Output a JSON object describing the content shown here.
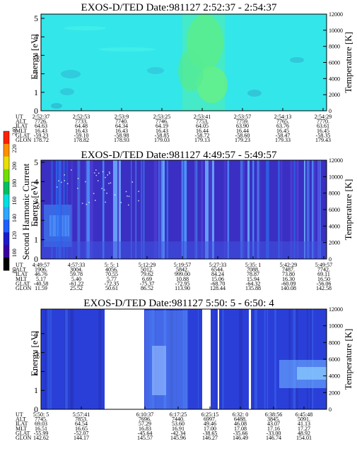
{
  "colorbar": {
    "label": "Second Harmonic Current",
    "ticks": [
      "80",
      "100",
      "120",
      "140",
      "160",
      "180",
      "200",
      "220",
      "240"
    ],
    "colors": [
      "#000000",
      "#3a00a0",
      "#1a1acc",
      "#1f5fff",
      "#2fa8ff",
      "#00e0e0",
      "#00c060",
      "#70e000",
      "#e8e000",
      "#ff9000",
      "#ff2000"
    ]
  },
  "row_labels": [
    "UT",
    "ALT",
    "ILAT",
    "MLT",
    "GLAT",
    "GLON"
  ],
  "panels": [
    {
      "title": "EXOS-D/TED   Date:981127  2:52:37 - 2:54:37",
      "ylabel": "Energy [eV]",
      "y2label": "Temperature [K]",
      "yticks": [
        "0",
        "1",
        "2",
        "3",
        "4",
        "5"
      ],
      "y2ticks": [
        "0",
        "2000",
        "4000",
        "6000",
        "8000",
        "10000",
        "12000"
      ],
      "bg": "#33e6ea",
      "columns": [
        [
          "2:52:37",
          "7726.",
          "64.63",
          "16.43",
          "-59.23",
          "178.72"
        ],
        [
          "2:52:53",
          "7733.",
          "64.48",
          "16.43",
          "-59.10",
          "178.82"
        ],
        [
          "2:53:9",
          "7740.",
          "64.34",
          "16.43",
          "-58.98",
          "178.93"
        ],
        [
          "2:53:25",
          "7746.",
          "64.19",
          "16.43",
          "-58.85",
          "179.03"
        ],
        [
          "2:53:41",
          "7753.",
          "64.05",
          "16.44",
          "-58.72",
          "179.13"
        ],
        [
          "2:53:57",
          "7759.",
          "63.90",
          "16.44",
          "-58.60",
          "179.23"
        ],
        [
          "2:54:13",
          "7765.",
          "63.76",
          "16.45",
          "-58.47",
          "179.33"
        ],
        [
          "2:54:29",
          "7770.",
          "63.61",
          "16.45",
          "-58.35",
          "179.43"
        ]
      ]
    },
    {
      "title": "EXOS-D/TED   Date:981127  4:49:57 - 5:49:57",
      "ylabel": "Energy [eV]",
      "y2label": "Temperature [K]",
      "yticks": [
        "0",
        "1",
        "2",
        "3",
        "4",
        "5"
      ],
      "y2ticks": [
        "0",
        "2000",
        "4000",
        "6000",
        "8000",
        "10000",
        "12000"
      ],
      "bg": "#3a2fc2",
      "columns": [
        [
          "4:49:57",
          "1906.",
          "46.76",
          "5.17",
          "-40.58",
          "11.59"
        ],
        [
          "4:57:33",
          "3004.",
          "59.78",
          "5.40",
          "-61.22",
          "25.52"
        ],
        [
          "5: 5: 1",
          "4056.",
          "70.55",
          "5.77",
          "-72.35",
          "50.61"
        ],
        [
          "5:12:29",
          "5012.",
          "79.62",
          "6.69",
          "-75.37",
          "86.52"
        ],
        [
          "5:19:57",
          "5842.",
          "999.00",
          "10.88",
          "-72.95",
          "113.90"
        ],
        [
          "5:27:33",
          "6544.",
          "84.24",
          "15.06",
          "-68.70",
          "128.44"
        ],
        [
          "5:35: 1",
          "7088.",
          "78.87",
          "15.94",
          "-64.32",
          "135.88"
        ],
        [
          "5:42:29",
          "7487.",
          "73.80",
          "16.30",
          "-60.09",
          "140.08"
        ],
        [
          "5:49:57",
          "7742.",
          "69.11",
          "16.50",
          "-56.06",
          "142.58"
        ]
      ]
    },
    {
      "title": "EXOS-D/TED   Date:981127  5:50: 5 - 6:50: 4",
      "ylabel": "Energy [eV]",
      "y2label": "Temperature [K]",
      "yticks": [
        "0",
        "1",
        "2",
        "3",
        "4"
      ],
      "y2ticks": [
        "0",
        "2000",
        "4000",
        "6000",
        "8000",
        "10000",
        "12000"
      ],
      "bg": "#2a3fd8",
      "columns": [
        [
          "5:50: 5",
          "7745.",
          "69.03",
          "16.51",
          "-55.99",
          "142.62"
        ],
        [
          "5:57:41",
          "7853.",
          "64.54",
          "16.65",
          "-52.07",
          "144.17"
        ],
        [
          "6:10:37",
          "7696.",
          "57.29",
          "16.83",
          "-45.64",
          "145.57"
        ],
        [
          "6:17:25",
          "7440.",
          "53.60",
          "16.91",
          "-42.34",
          "145.96"
        ],
        [
          "6:25:15",
          "6997.",
          "49.46",
          "17.00",
          "-38.65",
          "146.27"
        ],
        [
          "6:32: 0",
          "6488.",
          "46.08",
          "17.08",
          "-35.66",
          "146.49"
        ],
        [
          "6:38:56",
          "3845.",
          "43.07",
          "17.16",
          "-33.00",
          "146.74"
        ],
        [
          "6:45:48",
          "5091.",
          "41.13",
          "17.27",
          "48.92",
          "154.01"
        ]
      ]
    }
  ],
  "chart_data": [
    {
      "type": "heatmap",
      "title": "EXOS-D/TED   Date:981127  2:52:37 - 2:54:37",
      "ylabel": "Energy [eV]",
      "y2label": "Temperature [K]",
      "ylim": [
        0,
        5
      ],
      "y2lim": [
        0,
        12000
      ],
      "x": [
        "2:52:37",
        "2:52:53",
        "2:53:9",
        "2:53:25",
        "2:53:41",
        "2:53:57",
        "2:54:13",
        "2:54:29"
      ]
    },
    {
      "type": "heatmap",
      "title": "EXOS-D/TED   Date:981127  4:49:57 - 5:49:57",
      "ylabel": "Energy [eV]",
      "y2label": "Temperature [K]",
      "colorbar_label": "Second Harmonic Current",
      "colorbar_range": [
        80,
        240
      ],
      "ylim": [
        0,
        5
      ],
      "y2lim": [
        0,
        12000
      ],
      "x": [
        "4:49:57",
        "4:57:33",
        "5: 5: 1",
        "5:12:29",
        "5:19:57",
        "5:27:33",
        "5:35: 1",
        "5:42:29",
        "5:49:57"
      ]
    },
    {
      "type": "heatmap",
      "title": "EXOS-D/TED   Date:981127  5:50: 5 - 6:50: 4",
      "ylabel": "Energy [eV]",
      "y2label": "Temperature [K]",
      "ylim": [
        0,
        5
      ],
      "y2lim": [
        0,
        12000
      ],
      "x": [
        "5:50: 5",
        "5:57:41",
        "6:10:37",
        "6:17:25",
        "6:25:15",
        "6:32: 0",
        "6:38:56",
        "6:45:48"
      ]
    }
  ]
}
